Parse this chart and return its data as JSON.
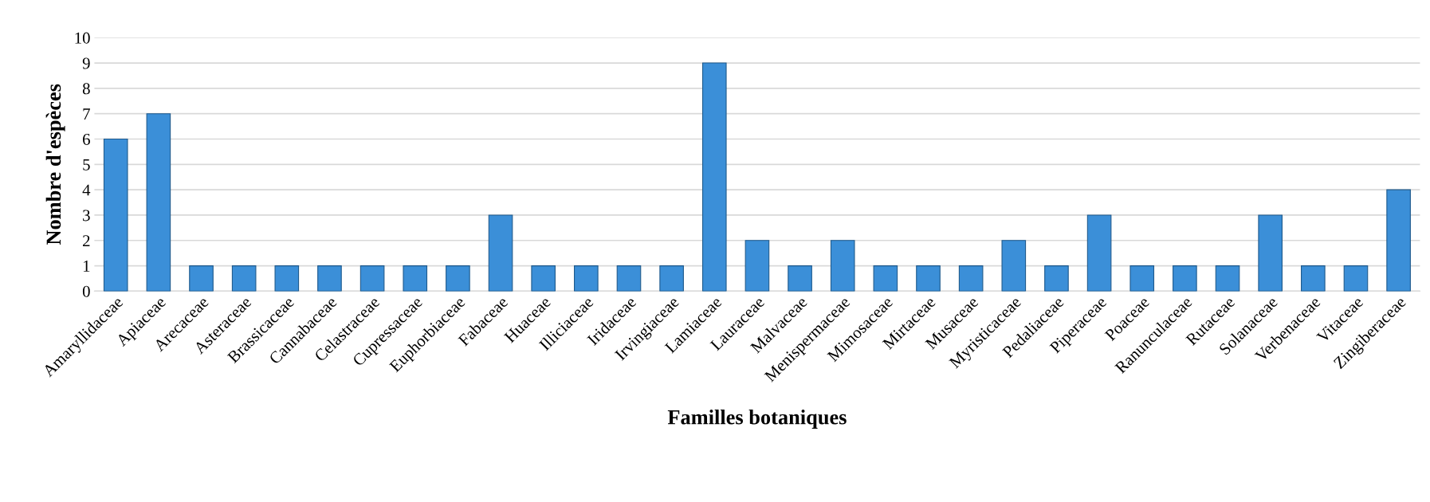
{
  "chart_data": {
    "type": "bar",
    "xlabel": "Familles botaniques",
    "ylabel": "Nombre d'espèces",
    "categories": [
      "Amaryllidaceae",
      "Apiaceae",
      "Arecaceae",
      "Asteraceae",
      "Brassicaceae",
      "Cannabaceae",
      "Celastraceae",
      "Cupressaceae",
      "Euphorbiaceae",
      "Fabaceae",
      "Huaceae",
      "Illiciaceae",
      "Iridaceae",
      "Irvingiaceae",
      "Lamiaceae",
      "Lauraceae",
      "Malvaceae",
      "Menispermaceae",
      "Mimosaceae",
      "Mirtaceae",
      "Musaceae",
      "Myristicaceae",
      "Pedaliaceae",
      "Piperaceae",
      "Poaceae",
      "Ranunculaceae",
      "Rutaceae",
      "Solanaceae",
      "Verbenaceae",
      "Vitaceae",
      "Zingiberaceae"
    ],
    "values": [
      6,
      7,
      1,
      1,
      1,
      1,
      1,
      1,
      1,
      3,
      1,
      1,
      1,
      1,
      9,
      2,
      1,
      2,
      1,
      1,
      1,
      2,
      1,
      3,
      1,
      1,
      1,
      3,
      1,
      1,
      4
    ],
    "color": "#3b8fd8",
    "ylim": [
      0,
      10
    ],
    "yticks": [
      0,
      1,
      2,
      3,
      4,
      5,
      6,
      7,
      8,
      9,
      10
    ],
    "grid": "y",
    "legend": false
  }
}
